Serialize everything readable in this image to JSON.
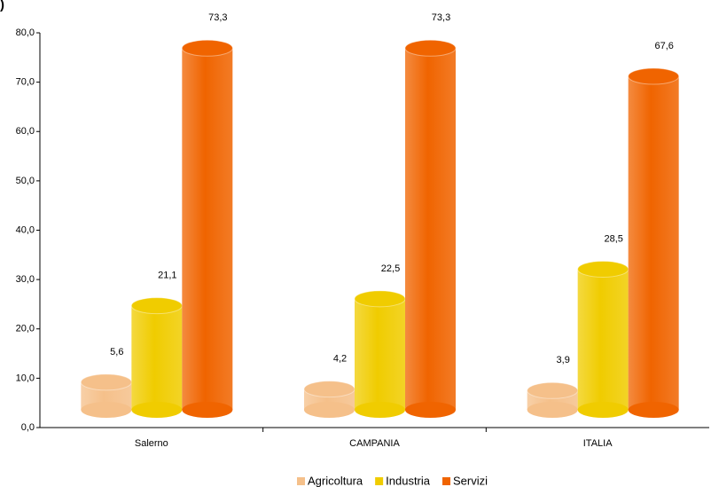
{
  "chart_data": {
    "type": "bar",
    "title": ")",
    "categories": [
      "Salerno",
      "CAMPANIA",
      "ITALIA"
    ],
    "series": [
      {
        "name": "Agricoltura",
        "color": "#f5c08a",
        "values": [
          5.6,
          4.2,
          3.9
        ],
        "value_labels": [
          "5,6",
          "4,2",
          "3,9"
        ]
      },
      {
        "name": "Industria",
        "color": "#f0cc00",
        "values": [
          21.1,
          22.5,
          28.5
        ],
        "value_labels": [
          "21,1",
          "22,5",
          "28,5"
        ]
      },
      {
        "name": "Servizi",
        "color": "#f06400",
        "values": [
          73.3,
          73.3,
          67.6
        ],
        "value_labels": [
          "73,3",
          "73,3",
          "67,6"
        ]
      }
    ],
    "ylim": [
      0,
      80
    ],
    "yticks": [
      {
        "value": 0,
        "label": "0,0"
      },
      {
        "value": 10,
        "label": "10,0"
      },
      {
        "value": 20,
        "label": "20,0"
      },
      {
        "value": 30,
        "label": "30,0"
      },
      {
        "value": 40,
        "label": "40,0"
      },
      {
        "value": 50,
        "label": "50,0"
      },
      {
        "value": 60,
        "label": "60,0"
      },
      {
        "value": 70,
        "label": "70,0"
      },
      {
        "value": 80,
        "label": "80,0"
      }
    ],
    "legend": "bottom"
  }
}
